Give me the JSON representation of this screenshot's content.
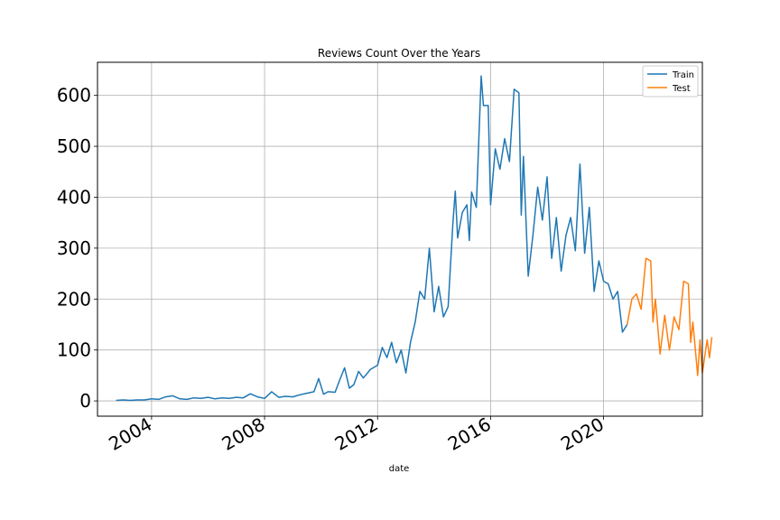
{
  "chart_data": {
    "type": "line",
    "title": "Reviews Count Over the Years",
    "xlabel": "date",
    "ylabel": "",
    "xlim": [
      "2002-02-01",
      "2023-07-01"
    ],
    "ylim": [
      -30,
      665
    ],
    "grid": true,
    "legend_position": "top-right",
    "x_ticks": [
      "2004",
      "2008",
      "2012",
      "2016",
      "2020"
    ],
    "y_ticks": [
      0,
      100,
      200,
      300,
      400,
      500,
      600
    ],
    "series": [
      {
        "name": "Train",
        "color": "#1f77b4",
        "points": [
          [
            "2002-10",
            1
          ],
          [
            "2003-01",
            2
          ],
          [
            "2003-04",
            1
          ],
          [
            "2003-07",
            2
          ],
          [
            "2003-10",
            2
          ],
          [
            "2004-01",
            4
          ],
          [
            "2004-04",
            3
          ],
          [
            "2004-07",
            8
          ],
          [
            "2004-10",
            10
          ],
          [
            "2005-01",
            4
          ],
          [
            "2005-04",
            3
          ],
          [
            "2005-07",
            6
          ],
          [
            "2005-10",
            5
          ],
          [
            "2006-01",
            7
          ],
          [
            "2006-04",
            4
          ],
          [
            "2006-07",
            6
          ],
          [
            "2006-10",
            5
          ],
          [
            "2007-01",
            7
          ],
          [
            "2007-04",
            6
          ],
          [
            "2007-07",
            14
          ],
          [
            "2007-10",
            8
          ],
          [
            "2008-01",
            5
          ],
          [
            "2008-04",
            18
          ],
          [
            "2008-07",
            7
          ],
          [
            "2008-10",
            9
          ],
          [
            "2009-01",
            8
          ],
          [
            "2009-04",
            12
          ],
          [
            "2009-07",
            15
          ],
          [
            "2009-10",
            18
          ],
          [
            "2009-12",
            44
          ],
          [
            "2010-02",
            13
          ],
          [
            "2010-04",
            18
          ],
          [
            "2010-07",
            17
          ],
          [
            "2010-09",
            42
          ],
          [
            "2010-11",
            65
          ],
          [
            "2011-01",
            25
          ],
          [
            "2011-03",
            32
          ],
          [
            "2011-05",
            58
          ],
          [
            "2011-07",
            45
          ],
          [
            "2011-10",
            62
          ],
          [
            "2012-01",
            70
          ],
          [
            "2012-03",
            105
          ],
          [
            "2012-05",
            85
          ],
          [
            "2012-07",
            115
          ],
          [
            "2012-09",
            75
          ],
          [
            "2012-11",
            100
          ],
          [
            "2013-01",
            55
          ],
          [
            "2013-03",
            115
          ],
          [
            "2013-05",
            155
          ],
          [
            "2013-07",
            215
          ],
          [
            "2013-09",
            200
          ],
          [
            "2013-11",
            300
          ],
          [
            "2014-01",
            175
          ],
          [
            "2014-03",
            225
          ],
          [
            "2014-05",
            165
          ],
          [
            "2014-07",
            185
          ],
          [
            "2014-09",
            350
          ],
          [
            "2014-10",
            412
          ],
          [
            "2014-11",
            320
          ],
          [
            "2015-01",
            370
          ],
          [
            "2015-03",
            385
          ],
          [
            "2015-04",
            315
          ],
          [
            "2015-05",
            410
          ],
          [
            "2015-07",
            380
          ],
          [
            "2015-09",
            638
          ],
          [
            "2015-10",
            580
          ],
          [
            "2015-12",
            580
          ],
          [
            "2016-01",
            385
          ],
          [
            "2016-03",
            495
          ],
          [
            "2016-05",
            455
          ],
          [
            "2016-07",
            515
          ],
          [
            "2016-09",
            470
          ],
          [
            "2016-11",
            612
          ],
          [
            "2017-01",
            605
          ],
          [
            "2017-02",
            365
          ],
          [
            "2017-03",
            480
          ],
          [
            "2017-05",
            245
          ],
          [
            "2017-07",
            325
          ],
          [
            "2017-09",
            420
          ],
          [
            "2017-11",
            355
          ],
          [
            "2018-01",
            440
          ],
          [
            "2018-03",
            280
          ],
          [
            "2018-05",
            360
          ],
          [
            "2018-07",
            255
          ],
          [
            "2018-09",
            325
          ],
          [
            "2018-11",
            360
          ],
          [
            "2019-01",
            295
          ],
          [
            "2019-03",
            465
          ],
          [
            "2019-05",
            290
          ],
          [
            "2019-07",
            380
          ],
          [
            "2019-09",
            215
          ],
          [
            "2019-11",
            275
          ],
          [
            "2020-01",
            235
          ],
          [
            "2020-03",
            230
          ],
          [
            "2020-05",
            200
          ],
          [
            "2020-07",
            215
          ],
          [
            "2020-09",
            135
          ],
          [
            "2020-11",
            150
          ]
        ]
      },
      {
        "name": "Test",
        "color": "#ff7f0e",
        "points": [
          [
            "2020-11",
            150
          ],
          [
            "2021-01",
            200
          ],
          [
            "2021-03",
            210
          ],
          [
            "2021-05",
            180
          ],
          [
            "2021-07",
            280
          ],
          [
            "2021-09",
            275
          ],
          [
            "2021-10",
            155
          ],
          [
            "2021-11",
            200
          ],
          [
            "2022-01",
            92
          ],
          [
            "2022-03",
            168
          ],
          [
            "2022-05",
            100
          ],
          [
            "2022-07",
            165
          ],
          [
            "2022-09",
            140
          ],
          [
            "2022-11",
            235
          ],
          [
            "2023-01",
            230
          ],
          [
            "2023-02",
            115
          ],
          [
            "2023-03",
            155
          ],
          [
            "2023-05",
            50
          ],
          [
            "2023-06",
            120
          ],
          [
            "2023-07",
            55
          ],
          [
            "2023-09",
            120
          ],
          [
            "2023-10",
            85
          ],
          [
            "2023-11",
            125
          ]
        ]
      }
    ]
  }
}
